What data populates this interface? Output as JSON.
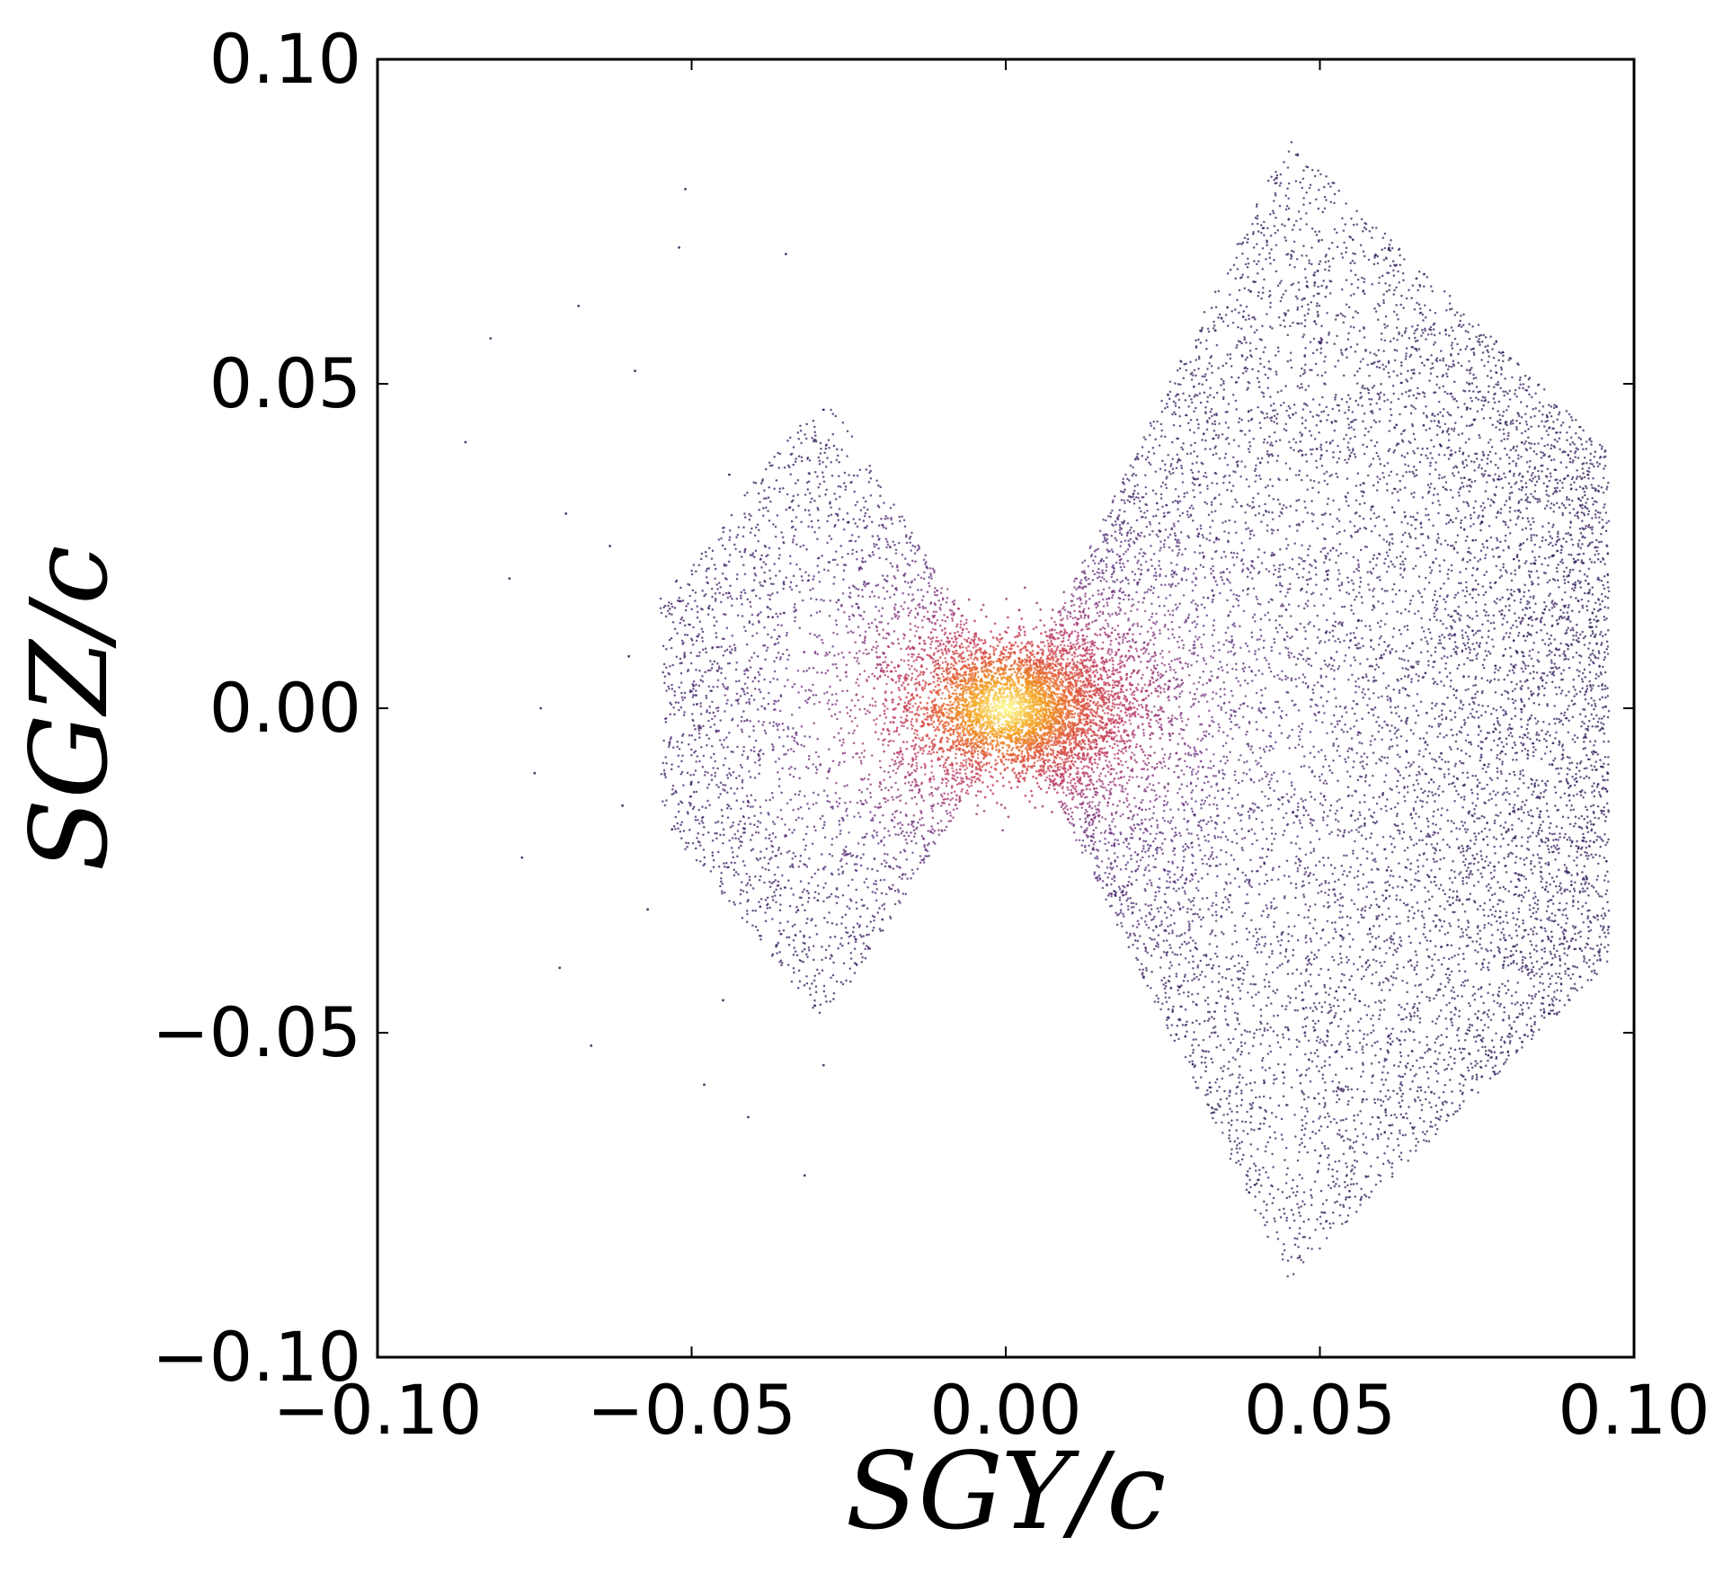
{
  "chart_data": {
    "type": "scatter",
    "title": "",
    "xlabel": "SGY/c",
    "ylabel": "SGZ/c",
    "xlim": [
      -0.1,
      0.1
    ],
    "ylim": [
      -0.1,
      0.1
    ],
    "x_ticks": [
      -0.1,
      -0.05,
      0.0,
      0.05,
      0.1
    ],
    "y_ticks": [
      -0.1,
      -0.05,
      0.0,
      0.05,
      0.1
    ],
    "x_tick_labels": [
      "−0.10",
      "−0.05",
      "0.00",
      "0.05",
      "0.10"
    ],
    "y_tick_labels": [
      "−0.10",
      "−0.05",
      "0.00",
      "0.05",
      "0.10"
    ],
    "grid": false,
    "legend": "none",
    "point_color_scale": "density (colormap: dark purple → red → yellow)",
    "colormap": [
      "#1e0f4a",
      "#5a2a7e",
      "#b5346a",
      "#e0553a",
      "#f4a21c",
      "#fbf58c"
    ],
    "regions": [
      {
        "name": "left lobe",
        "x_range": [
          -0.055,
          -0.003
        ],
        "y_range": [
          -0.052,
          0.046
        ],
        "approx_points": 3200
      },
      {
        "name": "right lobe",
        "x_range": [
          0.003,
          0.096
        ],
        "y_range": [
          -0.085,
          0.088
        ],
        "approx_points": 11000
      },
      {
        "name": "central concentration",
        "x_range": [
          -0.012,
          0.022
        ],
        "y_range": [
          -0.012,
          0.012
        ],
        "approx_points": 3500
      }
    ],
    "sparse_outlier_points": [
      [
        -0.086,
        0.041
      ],
      [
        -0.082,
        0.057
      ],
      [
        -0.079,
        0.02
      ],
      [
        -0.077,
        -0.023
      ],
      [
        -0.074,
        0.0
      ],
      [
        -0.071,
        -0.04
      ],
      [
        -0.068,
        0.062
      ],
      [
        -0.066,
        -0.052
      ],
      [
        -0.063,
        0.025
      ],
      [
        -0.061,
        -0.015
      ],
      [
        -0.059,
        0.052
      ],
      [
        -0.057,
        -0.031
      ],
      [
        -0.052,
        0.071
      ],
      [
        -0.048,
        -0.058
      ],
      [
        -0.041,
        -0.063
      ],
      [
        -0.035,
        0.07
      ],
      [
        -0.032,
        -0.072
      ],
      [
        -0.029,
        -0.055
      ],
      [
        -0.051,
        0.08
      ],
      [
        -0.044,
        0.036
      ],
      [
        -0.07,
        0.03
      ],
      [
        -0.075,
        -0.01
      ],
      [
        -0.06,
        0.008
      ],
      [
        -0.045,
        -0.045
      ]
    ]
  }
}
